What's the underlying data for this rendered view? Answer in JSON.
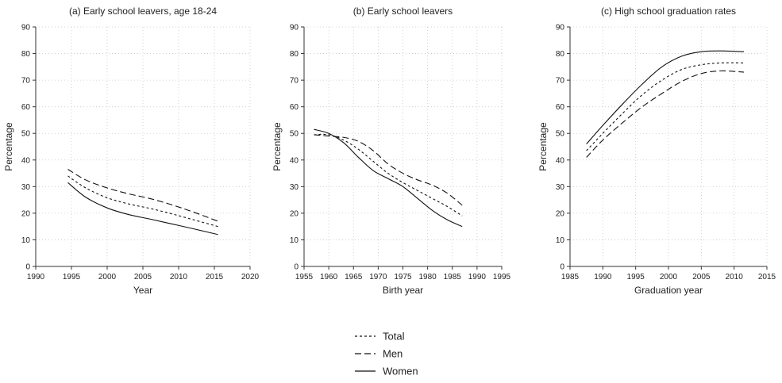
{
  "legend": [
    {
      "name": "Total",
      "dash": "3,3"
    },
    {
      "name": "Men",
      "dash": "8,4"
    },
    {
      "name": "Women",
      "dash": "none"
    }
  ],
  "chart_data": [
    {
      "type": "line",
      "title": "(a) Early school leavers, age 18-24",
      "xlabel": "Year",
      "ylabel": "Percentage",
      "xlim": [
        1990,
        2020
      ],
      "ylim": [
        0,
        90
      ],
      "xticks": [
        1990,
        1995,
        2000,
        2005,
        2010,
        2015,
        2020
      ],
      "yticks": [
        0,
        10,
        20,
        30,
        40,
        50,
        60,
        70,
        80,
        90
      ],
      "grid": true,
      "series": [
        {
          "name": "Total",
          "x": [
            1994.5,
            1997,
            2000,
            2003,
            2006,
            2009,
            2012,
            2015.5
          ],
          "y": [
            34,
            29.5,
            25.8,
            23.5,
            21.8,
            19.8,
            17.6,
            15
          ]
        },
        {
          "name": "Men",
          "x": [
            1994.5,
            1997,
            2000,
            2003,
            2006,
            2009,
            2012,
            2015.5
          ],
          "y": [
            36.5,
            32.5,
            29.5,
            27.3,
            25.5,
            23.2,
            20.5,
            17
          ]
        },
        {
          "name": "Women",
          "x": [
            1994.5,
            1997,
            2000,
            2003,
            2006,
            2009,
            2012,
            2015.5
          ],
          "y": [
            31.5,
            26,
            22,
            19.5,
            17.8,
            16,
            14.2,
            12
          ]
        }
      ]
    },
    {
      "type": "line",
      "title": "(b) Early school leavers",
      "xlabel": "Birth year",
      "ylabel": "Percentage",
      "xlim": [
        1955,
        1995
      ],
      "ylim": [
        0,
        90
      ],
      "xticks": [
        1955,
        1960,
        1965,
        1970,
        1975,
        1980,
        1985,
        1990,
        1995
      ],
      "yticks": [
        0,
        10,
        20,
        30,
        40,
        50,
        60,
        70,
        80,
        90
      ],
      "grid": true,
      "series": [
        {
          "name": "Total",
          "x": [
            1957,
            1960,
            1963,
            1966,
            1969,
            1972,
            1975,
            1978,
            1981,
            1984,
            1987
          ],
          "y": [
            49.5,
            49.5,
            47.5,
            44,
            39.5,
            35,
            31.5,
            28.5,
            25.5,
            22.5,
            19
          ]
        },
        {
          "name": "Men",
          "x": [
            1957,
            1960,
            1963,
            1966,
            1969,
            1972,
            1975,
            1978,
            1981,
            1984,
            1987
          ],
          "y": [
            49.5,
            49,
            48.5,
            47,
            43.5,
            38.5,
            35,
            32.5,
            30.5,
            27.5,
            23
          ]
        },
        {
          "name": "Women",
          "x": [
            1957,
            1960,
            1963,
            1966,
            1969,
            1972,
            1975,
            1978,
            1981,
            1984,
            1987
          ],
          "y": [
            51.5,
            50,
            46.5,
            41,
            36,
            33,
            30,
            25.5,
            21,
            17.5,
            15
          ]
        }
      ]
    },
    {
      "type": "line",
      "title": "(c) High school graduation rates",
      "xlabel": "Graduation year",
      "ylabel": "Percentage",
      "xlim": [
        1985,
        2015
      ],
      "ylim": [
        0,
        90
      ],
      "xticks": [
        1985,
        1990,
        1995,
        2000,
        2005,
        2010,
        2015
      ],
      "yticks": [
        0,
        10,
        20,
        30,
        40,
        50,
        60,
        70,
        80,
        90
      ],
      "grid": true,
      "series": [
        {
          "name": "Total",
          "x": [
            1987.5,
            1990,
            1993,
            1996,
            1999,
            2002,
            2005,
            2008,
            2011.5
          ],
          "y": [
            43.5,
            50,
            57.5,
            64.5,
            70,
            74,
            75.8,
            76.5,
            76.5
          ]
        },
        {
          "name": "Men",
          "x": [
            1987.5,
            1990,
            1993,
            1996,
            1999,
            2002,
            2005,
            2008,
            2011.5
          ],
          "y": [
            41,
            47.5,
            54,
            60,
            65,
            69.5,
            72.5,
            73.5,
            73
          ]
        },
        {
          "name": "Women",
          "x": [
            1987.5,
            1990,
            1993,
            1996,
            1999,
            2002,
            2005,
            2008,
            2011.5
          ],
          "y": [
            46,
            53,
            61,
            68.5,
            75,
            79,
            80.7,
            81,
            80.7
          ]
        }
      ]
    }
  ]
}
